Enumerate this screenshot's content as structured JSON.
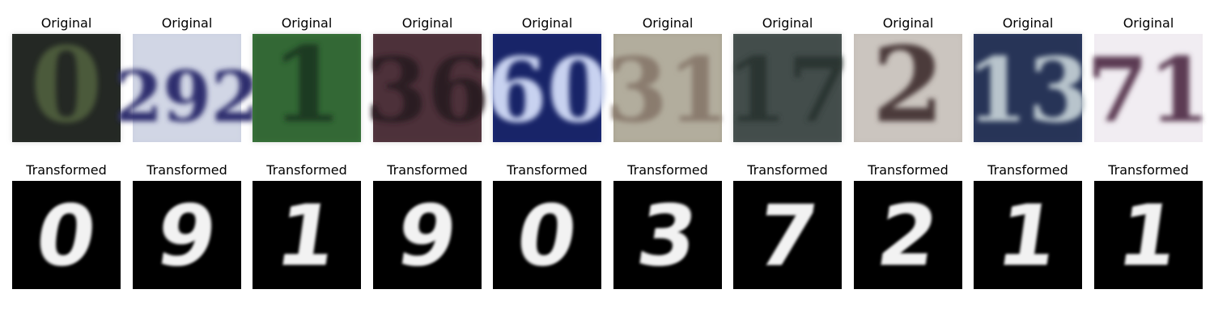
{
  "figure": {
    "rows": [
      {
        "id": "original",
        "label": "Original",
        "items": [
          {
            "digit": "0",
            "bg": "#2a2f2a",
            "ink": "#4b5a3a",
            "light": false
          },
          {
            "digit": "292",
            "bg": "#c9cfe0",
            "ink": "#2d2f6e",
            "light": true
          },
          {
            "digit": "1",
            "bg": "#3c7a3e",
            "ink": "#1f3a22",
            "light": false
          },
          {
            "digit": "36",
            "bg": "#5a3a44",
            "ink": "#2a1a22",
            "light": false
          },
          {
            "digit": "60",
            "bg": "#1c2a7a",
            "ink": "#c8d2f0",
            "light": false
          },
          {
            "digit": "31",
            "bg": "#a59f8c",
            "ink": "#8a7c6e",
            "light": true
          },
          {
            "digit": "17",
            "bg": "#4f5a58",
            "ink": "#2a3432",
            "light": false
          },
          {
            "digit": "2",
            "bg": "#c2bbb4",
            "ink": "#4b3a3a",
            "light": true
          },
          {
            "digit": "13",
            "bg": "#2e3d66",
            "ink": "#b8c4cc",
            "light": false
          },
          {
            "digit": "71",
            "bg": "#efeaf0",
            "ink": "#5c3a52",
            "light": true
          }
        ]
      },
      {
        "id": "transformed",
        "label": "Transformed",
        "items": [
          {
            "digit": "0"
          },
          {
            "digit": "9"
          },
          {
            "digit": "1"
          },
          {
            "digit": "9"
          },
          {
            "digit": "0"
          },
          {
            "digit": "3"
          },
          {
            "digit": "7"
          },
          {
            "digit": "2"
          },
          {
            "digit": "1"
          },
          {
            "digit": "1"
          }
        ]
      }
    ]
  }
}
